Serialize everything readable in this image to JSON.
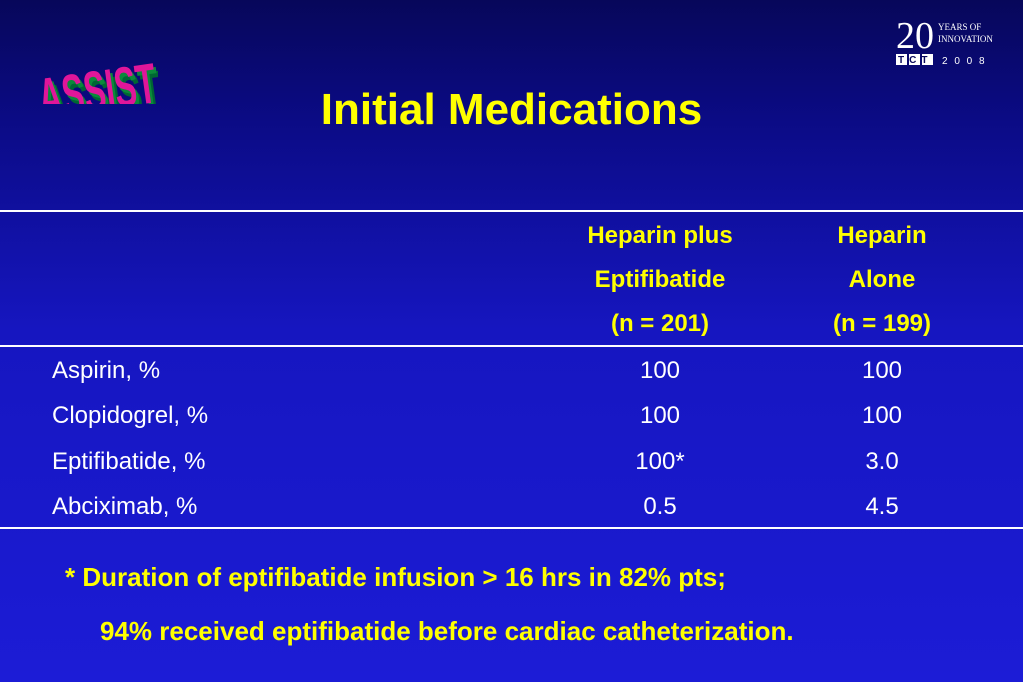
{
  "logos": {
    "left_text": "ASSIST",
    "right_number": "20",
    "right_line1": "YEARS OF",
    "right_line2": "INNOVATION",
    "right_tct": "TCT",
    "right_year": "2 0 0 8"
  },
  "title": "Initial Medications",
  "table": {
    "columns": [
      {
        "line1": "Heparin plus",
        "line2": "Eptifibatide",
        "line3": "(n = 201)"
      },
      {
        "line1": "Heparin",
        "line2": "Alone",
        "line3": "(n = 199)"
      }
    ],
    "rows": [
      {
        "label": "Aspirin, %",
        "values": [
          "100",
          "100"
        ]
      },
      {
        "label": "Clopidogrel, %",
        "values": [
          "100",
          "100"
        ]
      },
      {
        "label": "Eptifibatide, %",
        "values": [
          "100*",
          "3.0"
        ]
      },
      {
        "label": "Abciximab, %",
        "values": [
          "0.5",
          "4.5"
        ]
      }
    ]
  },
  "footnote": {
    "line1": "*  Duration of eptifibatide infusion > 16 hrs in 82% pts;",
    "line2": "94% received eptifibatide before cardiac catheterization."
  },
  "colors": {
    "background_top": "#07075a",
    "background_bottom": "#1c1cd6",
    "accent_yellow": "#ffff00",
    "text_white": "#ffffff",
    "logo_magenta": "#e0169a",
    "logo_green": "#0a8a3a"
  }
}
